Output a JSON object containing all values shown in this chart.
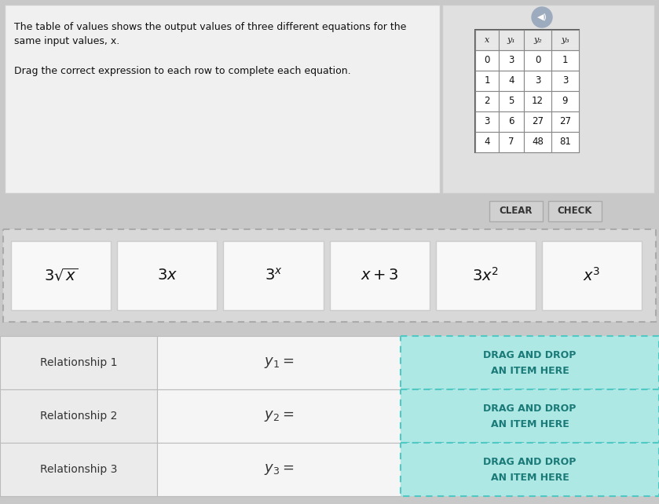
{
  "bg_color": "#c8c8c8",
  "top_panel_bg": "#f0f0f0",
  "top_panel_right_bg": "#e0e0e0",
  "title_text1": "The table of values shows the output values of three different equations for the",
  "title_text2": "same input values, x.",
  "subtitle_text": "Drag the correct expression to each row to complete each equation.",
  "table_headers": [
    "x",
    "y₁",
    "y₂",
    "y₃"
  ],
  "table_data": [
    [
      0,
      3,
      0,
      1
    ],
    [
      1,
      4,
      3,
      3
    ],
    [
      2,
      5,
      12,
      9
    ],
    [
      3,
      6,
      27,
      27
    ],
    [
      4,
      7,
      48,
      81
    ]
  ],
  "clear_btn_text": "CLEAR",
  "check_btn_text": "CHECK",
  "card_display": [
    "$3\\sqrt{x}$",
    "$3x$",
    "$3^{x}$",
    "$x + 3$",
    "$3x^2$",
    "$x^3$"
  ],
  "relationship_labels": [
    "Relationship 1",
    "Relationship 2",
    "Relationship 3"
  ],
  "y_labels_math": [
    "$y_1 =$",
    "$y_2 =$",
    "$y_3 =$"
  ],
  "drag_drop_line1": "DRAG AND DROP",
  "drag_drop_line2": "AN ITEM HERE",
  "drag_drop_fill": "#aee8e5",
  "drag_drop_border": "#50c8c3",
  "card_bg": "#f8f8f8",
  "card_border": "#cccccc",
  "dashed_area_bg": "#d8d8d8",
  "dashed_border_color": "#aaaaaa",
  "button_bg": "#d0d0d0",
  "button_border": "#aaaaaa",
  "rel_left_bg": "#ebebeb",
  "rel_mid_bg": "#f5f5f5",
  "rel_border": "#bbbbbb"
}
